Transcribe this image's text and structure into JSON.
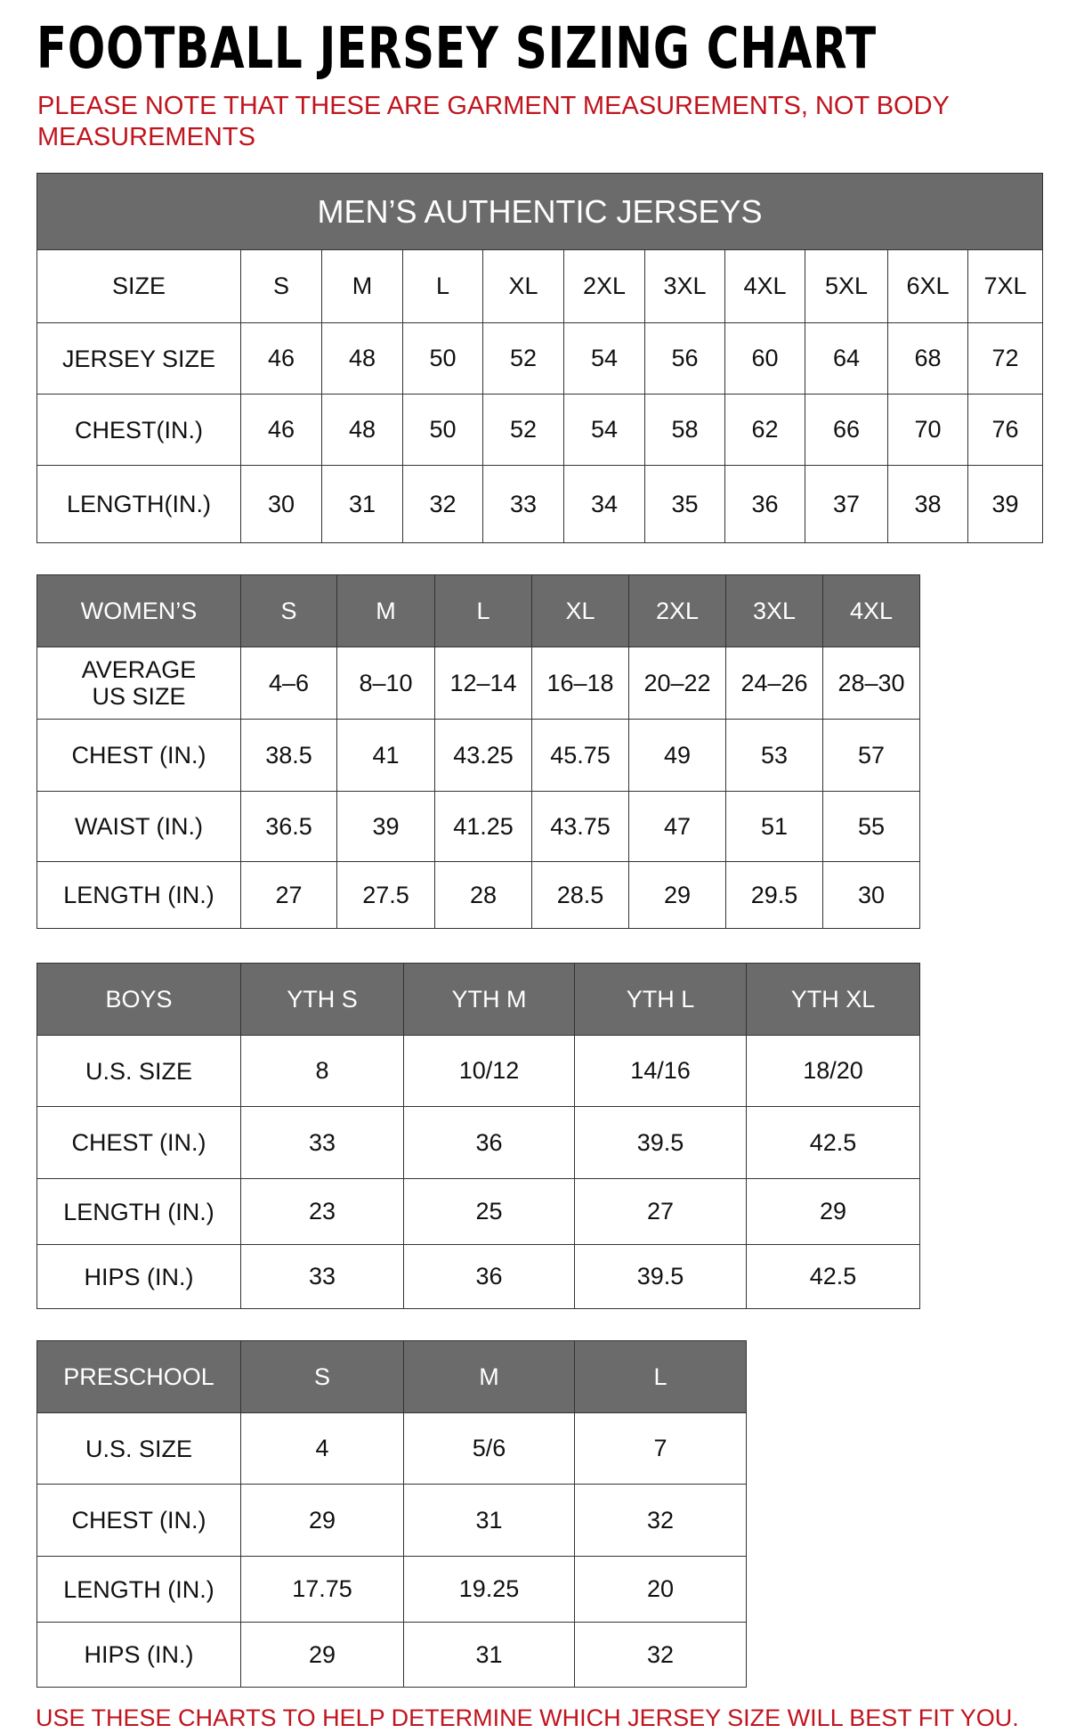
{
  "title": "FOOTBALL JERSEY SIZING CHART",
  "note": "PLEASE NOTE THAT THESE ARE GARMENT MEASUREMENTS, NOT BODY MEASUREMENTS",
  "footer": "USE THESE CHARTS TO HELP DETERMINE WHICH JERSEY SIZE WILL BEST FIT YOU.",
  "colors": {
    "header_bg": "#6b6b6b",
    "accent_red": "#c0141e"
  },
  "tables": [
    {
      "caption": "MEN’S AUTHENTIC JERSEYS",
      "header": [
        "SIZE",
        "S",
        "M",
        "L",
        "XL",
        "2XL",
        "3XL",
        "4XL",
        "5XL",
        "6XL",
        "7XL"
      ],
      "header_style": "plain",
      "rows": [
        [
          "JERSEY SIZE",
          "46",
          "48",
          "50",
          "52",
          "54",
          "56",
          "60",
          "64",
          "68",
          "72"
        ],
        [
          "CHEST(IN.)",
          "46",
          "48",
          "50",
          "52",
          "54",
          "58",
          "62",
          "66",
          "70",
          "76"
        ],
        [
          "LENGTH(IN.)",
          "30",
          "31",
          "32",
          "33",
          "34",
          "35",
          "36",
          "37",
          "38",
          "39"
        ]
      ]
    },
    {
      "header": [
        "WOMEN’S",
        "S",
        "M",
        "L",
        "XL",
        "2XL",
        "3XL",
        "4XL"
      ],
      "header_style": "gray",
      "rows": [
        [
          "AVERAGE US SIZE",
          "4–6",
          "8–10",
          "12–14",
          "16–18",
          "20–22",
          "24–26",
          "28–30"
        ],
        [
          "CHEST (IN.)",
          "38.5",
          "41",
          "43.25",
          "45.75",
          "49",
          "53",
          "57"
        ],
        [
          "WAIST (IN.)",
          "36.5",
          "39",
          "41.25",
          "43.75",
          "47",
          "51",
          "55"
        ],
        [
          "LENGTH (IN.)",
          "27",
          "27.5",
          "28",
          "28.5",
          "29",
          "29.5",
          "30"
        ]
      ]
    },
    {
      "header": [
        "BOYS",
        "YTH S",
        "YTH M",
        "YTH L",
        "YTH XL"
      ],
      "header_style": "gray",
      "rows": [
        [
          "U.S. SIZE",
          "8",
          "10/12",
          "14/16",
          "18/20"
        ],
        [
          "CHEST (IN.)",
          "33",
          "36",
          "39.5",
          "42.5"
        ],
        [
          "LENGTH (IN.)",
          "23",
          "25",
          "27",
          "29"
        ],
        [
          "HIPS (IN.)",
          "33",
          "36",
          "39.5",
          "42.5"
        ]
      ]
    },
    {
      "header": [
        "PRESCHOOL",
        "S",
        "M",
        "L"
      ],
      "header_style": "gray",
      "rows": [
        [
          "U.S. SIZE",
          "4",
          "5/6",
          "7"
        ],
        [
          "CHEST (IN.)",
          "29",
          "31",
          "32"
        ],
        [
          "LENGTH (IN.)",
          "17.75",
          "19.25",
          "20"
        ],
        [
          "HIPS (IN.)",
          "29",
          "31",
          "32"
        ]
      ]
    }
  ]
}
